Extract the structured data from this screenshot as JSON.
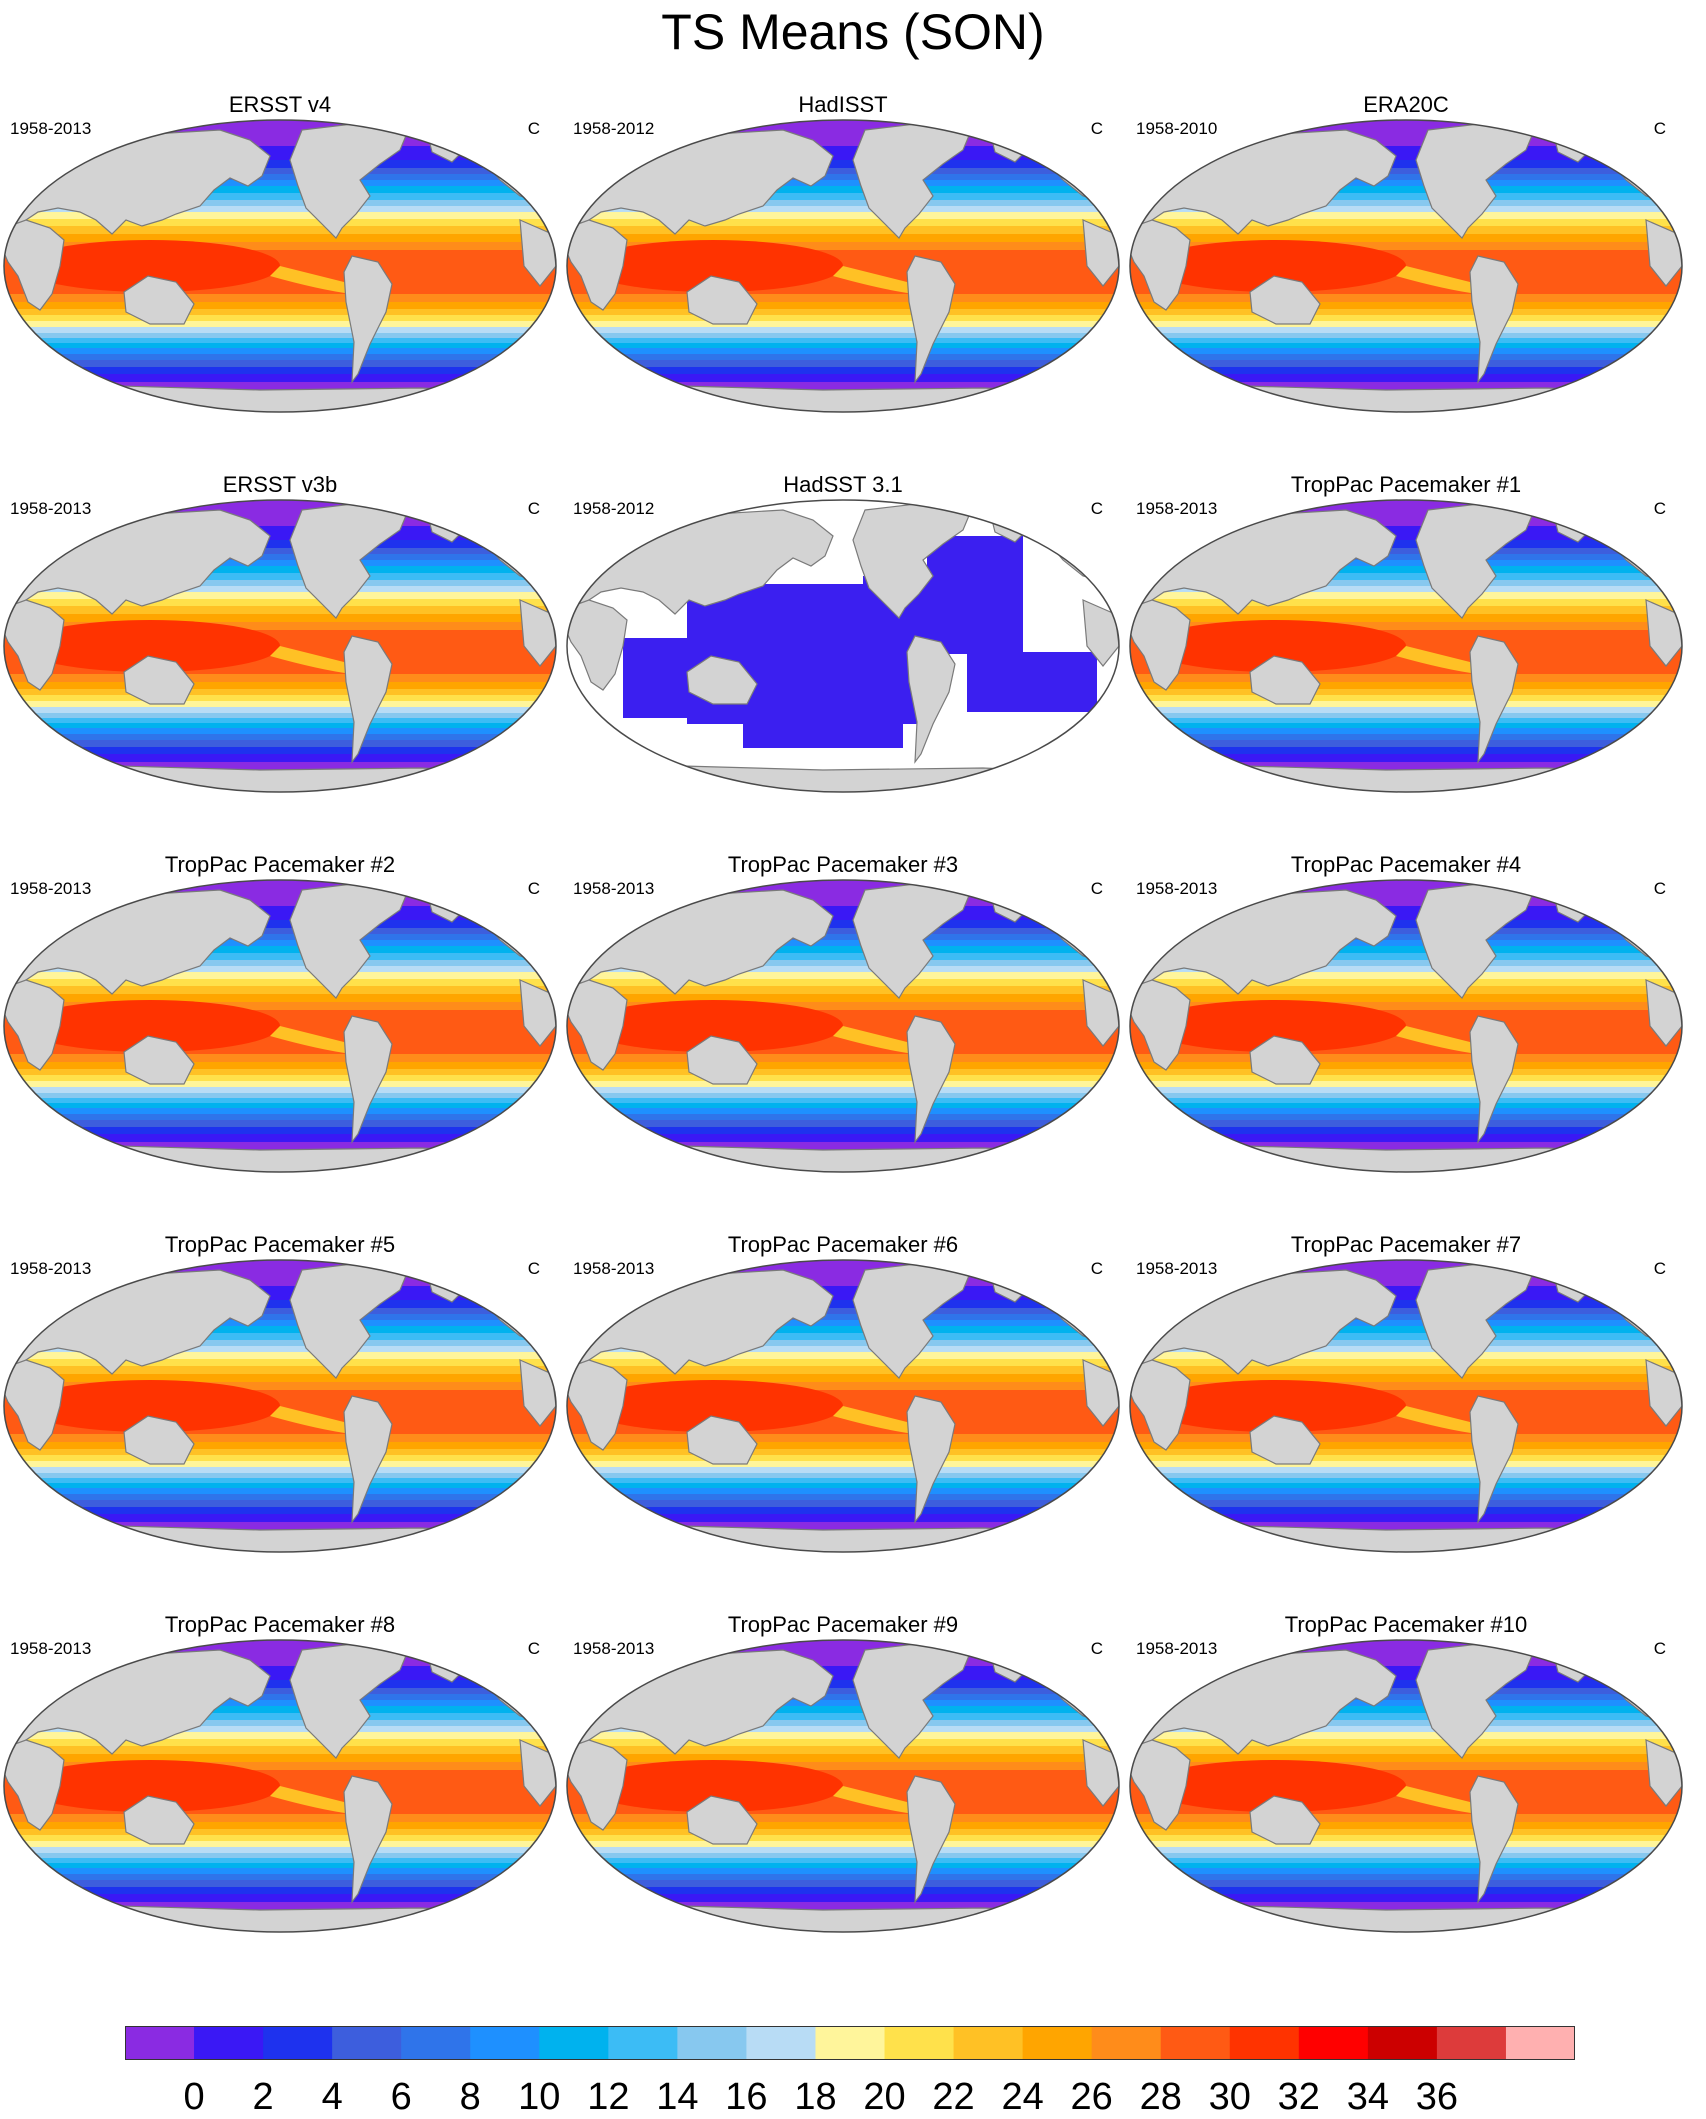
{
  "title": "TS Means (SON)",
  "units": "C",
  "colors": {
    "land": "#d3d3d3",
    "coast": "#7a7a7a",
    "missing": "#ffffff",
    "had_ocean": "#3b1ff0",
    "had_ocean_south": "#7e2ef0"
  },
  "colorbar": {
    "colors": [
      "#8a2be2",
      "#3a18f5",
      "#1e32ee",
      "#3d5edd",
      "#2f74ea",
      "#1e90ff",
      "#00b2ee",
      "#3cbcf5",
      "#87c8ef",
      "#b8dcf5",
      "#fff59b",
      "#ffe14b",
      "#ffc125",
      "#ffa500",
      "#ff8c1a",
      "#ff5a14",
      "#ff3300",
      "#ff0000",
      "#cc0000",
      "#dd3b3b",
      "#ffb0b0"
    ],
    "labels": [
      "0",
      "2",
      "4",
      "6",
      "8",
      "10",
      "12",
      "14",
      "16",
      "18",
      "20",
      "22",
      "24",
      "26",
      "28",
      "30",
      "32",
      "34",
      "36"
    ]
  },
  "panels": [
    {
      "title": "ERSST v4",
      "years": "1958-2013",
      "units": "C"
    },
    {
      "title": "HadISST",
      "years": "1958-2012",
      "units": "C"
    },
    {
      "title": "ERA20C",
      "years": "1958-2010",
      "units": "C"
    },
    {
      "title": "ERSST v3b",
      "years": "1958-2013",
      "units": "C"
    },
    {
      "title": "HadSST 3.1",
      "years": "1958-2012",
      "units": "C",
      "sparse": true
    },
    {
      "title": "TropPac Pacemaker #1",
      "years": "1958-2013",
      "units": "C"
    },
    {
      "title": "TropPac Pacemaker #2",
      "years": "1958-2013",
      "units": "C"
    },
    {
      "title": "TropPac Pacemaker #3",
      "years": "1958-2013",
      "units": "C"
    },
    {
      "title": "TropPac Pacemaker #4",
      "years": "1958-2013",
      "units": "C"
    },
    {
      "title": "TropPac Pacemaker #5",
      "years": "1958-2013",
      "units": "C"
    },
    {
      "title": "TropPac Pacemaker #6",
      "years": "1958-2013",
      "units": "C"
    },
    {
      "title": "TropPac Pacemaker #7",
      "years": "1958-2013",
      "units": "C"
    },
    {
      "title": "TropPac Pacemaker #8",
      "years": "1958-2013",
      "units": "C"
    },
    {
      "title": "TropPac Pacemaker #9",
      "years": "1958-2013",
      "units": "C"
    },
    {
      "title": "TropPac Pacemaker #10",
      "years": "1958-2013",
      "units": "C"
    }
  ]
}
